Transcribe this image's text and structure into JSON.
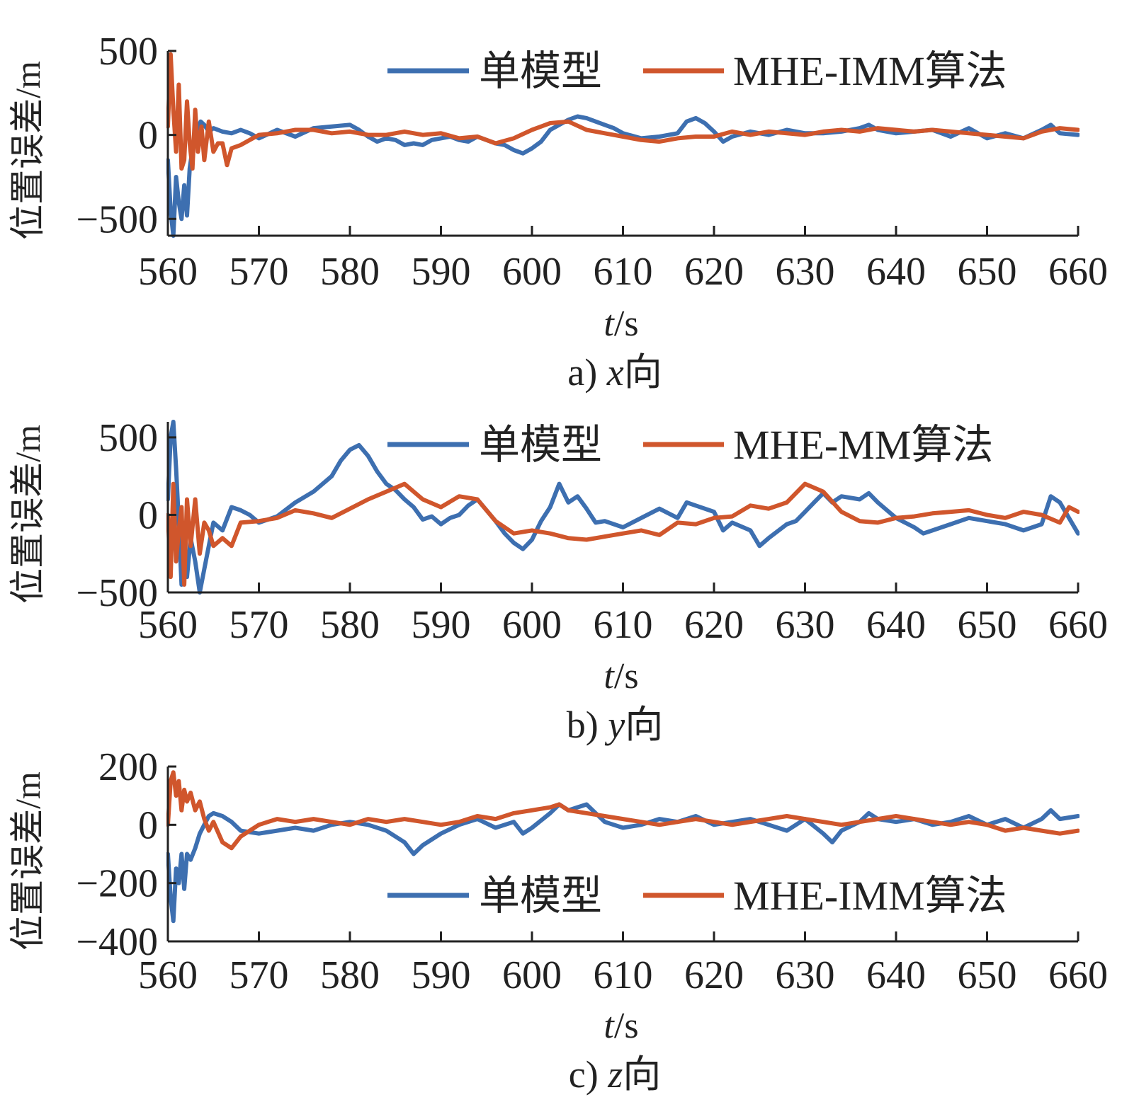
{
  "colors": {
    "series_single": "#3d6fb0",
    "series_imm": "#d0562c",
    "axis": "#222222"
  },
  "chart_data": [
    {
      "type": "line",
      "caption": "a) x向",
      "caption_prefix": "a) ",
      "caption_var": "x",
      "caption_suffix": "向",
      "xlabel_var": "t",
      "xlabel_unit": "/s",
      "ylabel": "位置误差/m",
      "xlim": [
        560,
        660
      ],
      "ylim": [
        -600,
        500
      ],
      "xticks": [
        "560",
        "570",
        "580",
        "590",
        "600",
        "610",
        "620",
        "630",
        "640",
        "650",
        "660"
      ],
      "yticks": [
        {
          "value": 500,
          "label": "500"
        },
        {
          "value": 0,
          "label": "0"
        },
        {
          "value": -500,
          "label": "−500"
        }
      ],
      "legend_position": "top",
      "grid": false,
      "series": [
        {
          "name": "单模型",
          "color": "#3d6fb0",
          "x": [
            560,
            560.3,
            560.6,
            560.9,
            561.2,
            561.5,
            561.8,
            562.1,
            562.4,
            562.8,
            563.2,
            563.6,
            564,
            564.5,
            565,
            566,
            567,
            568,
            569,
            570,
            572,
            574,
            576,
            578,
            580,
            581,
            582,
            583,
            584,
            585,
            586,
            587,
            588,
            589,
            590,
            591,
            592,
            593,
            594,
            595,
            596,
            597,
            598,
            599,
            600,
            601,
            602,
            603,
            604,
            605,
            606,
            607,
            608,
            609,
            610,
            612,
            614,
            616,
            617,
            618,
            619,
            620,
            621,
            622,
            624,
            626,
            628,
            630,
            632,
            634,
            636,
            637,
            638,
            640,
            642,
            644,
            646,
            648,
            650,
            652,
            654,
            656,
            657,
            658,
            660
          ],
          "y": [
            -150,
            -450,
            -600,
            -250,
            -400,
            -500,
            -300,
            -480,
            -200,
            -50,
            30,
            80,
            60,
            20,
            40,
            20,
            10,
            30,
            10,
            -20,
            30,
            -10,
            40,
            50,
            60,
            30,
            -10,
            -40,
            -20,
            -30,
            -60,
            -50,
            -60,
            -30,
            -20,
            -10,
            -30,
            -40,
            -10,
            -30,
            -50,
            -60,
            -90,
            -110,
            -80,
            -40,
            30,
            60,
            90,
            110,
            100,
            80,
            60,
            40,
            10,
            -20,
            -10,
            10,
            80,
            100,
            70,
            20,
            -40,
            -10,
            20,
            0,
            30,
            10,
            10,
            20,
            40,
            60,
            30,
            10,
            20,
            30,
            -10,
            40,
            -20,
            10,
            -20,
            30,
            60,
            10,
            0
          ]
        },
        {
          "name": "MHE-IMM算法",
          "color": "#d0562c",
          "x": [
            560,
            560.3,
            560.6,
            560.9,
            561.2,
            561.5,
            561.8,
            562.1,
            562.4,
            562.7,
            563,
            563.3,
            563.7,
            564,
            564.5,
            565,
            565.5,
            566,
            566.5,
            567,
            568,
            569,
            570,
            572,
            574,
            576,
            578,
            580,
            582,
            584,
            586,
            588,
            590,
            592,
            594,
            596,
            598,
            600,
            602,
            604,
            606,
            608,
            610,
            612,
            614,
            616,
            618,
            620,
            622,
            624,
            626,
            628,
            630,
            632,
            634,
            636,
            638,
            640,
            642,
            644,
            646,
            648,
            650,
            652,
            654,
            656,
            658,
            660
          ],
          "y": [
            50,
            480,
            150,
            -100,
            300,
            -200,
            -150,
            200,
            -50,
            -200,
            150,
            -100,
            50,
            -150,
            80,
            -100,
            -50,
            -50,
            -180,
            -80,
            -60,
            -30,
            0,
            10,
            30,
            30,
            10,
            20,
            0,
            0,
            20,
            0,
            10,
            -20,
            -10,
            -50,
            -20,
            30,
            70,
            80,
            30,
            10,
            -10,
            -30,
            -40,
            -20,
            -10,
            -10,
            20,
            0,
            20,
            10,
            0,
            20,
            30,
            20,
            40,
            30,
            20,
            30,
            20,
            10,
            0,
            -10,
            -20,
            20,
            40,
            30
          ]
        }
      ]
    },
    {
      "type": "line",
      "caption": "b) y向",
      "caption_prefix": "b) ",
      "caption_var": "y",
      "caption_suffix": "向",
      "xlabel_var": "t",
      "xlabel_unit": "/s",
      "ylabel": "位置误差/m",
      "xlim": [
        560,
        660
      ],
      "ylim": [
        -500,
        600
      ],
      "xticks": [
        "560",
        "570",
        "580",
        "590",
        "600",
        "610",
        "620",
        "630",
        "640",
        "650",
        "660"
      ],
      "yticks": [
        {
          "value": 500,
          "label": "500"
        },
        {
          "value": 0,
          "label": "0"
        },
        {
          "value": -500,
          "label": "−500"
        }
      ],
      "legend_position": "top",
      "grid": false,
      "series": [
        {
          "name": "单模型",
          "color": "#3d6fb0",
          "x": [
            560,
            560.3,
            560.6,
            560.9,
            561.2,
            561.5,
            561.8,
            562.1,
            562.5,
            563,
            563.5,
            564,
            564.5,
            565,
            566,
            567,
            568,
            569,
            570,
            572,
            574,
            576,
            578,
            579,
            580,
            581,
            582,
            583,
            584,
            585,
            586,
            587,
            588,
            589,
            590,
            591,
            592,
            593,
            594,
            596,
            597,
            598,
            599,
            600,
            601,
            602,
            603,
            604,
            605,
            606,
            607,
            608,
            610,
            612,
            614,
            616,
            617,
            618,
            620,
            621,
            622,
            624,
            625,
            626,
            628,
            629,
            630,
            631,
            632,
            633,
            634,
            636,
            637,
            638,
            640,
            642,
            643,
            644,
            646,
            648,
            650,
            652,
            654,
            656,
            657,
            658,
            660
          ],
          "y": [
            100,
            500,
            600,
            300,
            -50,
            -450,
            -200,
            -400,
            -150,
            -300,
            -500,
            -350,
            -200,
            -50,
            -100,
            50,
            30,
            0,
            -50,
            -10,
            80,
            150,
            250,
            350,
            420,
            450,
            380,
            280,
            200,
            160,
            100,
            50,
            -30,
            -10,
            -60,
            -20,
            0,
            60,
            100,
            -40,
            -120,
            -180,
            -220,
            -160,
            -40,
            50,
            200,
            80,
            120,
            40,
            -50,
            -40,
            -80,
            -20,
            40,
            -20,
            80,
            60,
            20,
            -100,
            -50,
            -100,
            -200,
            -150,
            -60,
            -40,
            20,
            80,
            140,
            80,
            120,
            100,
            140,
            80,
            -20,
            -80,
            -120,
            -100,
            -60,
            -20,
            -40,
            -60,
            -100,
            -60,
            120,
            80,
            -120
          ]
        },
        {
          "name": "MHE-MM算法",
          "color": "#d0562c",
          "x": [
            560,
            560.3,
            560.6,
            560.9,
            561.2,
            561.5,
            561.8,
            562.1,
            562.5,
            563,
            563.5,
            564,
            564.5,
            565,
            566,
            567,
            568,
            570,
            572,
            574,
            576,
            578,
            580,
            582,
            584,
            586,
            588,
            590,
            592,
            594,
            596,
            598,
            600,
            602,
            604,
            606,
            608,
            610,
            612,
            614,
            616,
            618,
            620,
            622,
            624,
            626,
            628,
            630,
            632,
            634,
            636,
            638,
            640,
            642,
            644,
            646,
            648,
            650,
            652,
            654,
            656,
            658,
            659,
            660
          ],
          "y": [
            0,
            -400,
            200,
            -300,
            -100,
            50,
            -450,
            100,
            -200,
            100,
            -250,
            -50,
            -100,
            -200,
            -150,
            -200,
            -50,
            -40,
            -20,
            30,
            10,
            -20,
            40,
            100,
            150,
            200,
            100,
            50,
            120,
            100,
            -40,
            -120,
            -100,
            -120,
            -150,
            -160,
            -140,
            -120,
            -100,
            -130,
            -50,
            -60,
            -20,
            -10,
            60,
            40,
            80,
            200,
            150,
            20,
            -40,
            -50,
            -20,
            -10,
            10,
            20,
            30,
            0,
            -20,
            20,
            0,
            -50,
            50,
            20
          ]
        }
      ]
    },
    {
      "type": "line",
      "caption": "c) z向",
      "caption_prefix": "c) ",
      "caption_var": "z",
      "caption_suffix": "向",
      "xlabel_var": "t",
      "xlabel_unit": "/s",
      "ylabel": "位置误差/m",
      "xlim": [
        560,
        660
      ],
      "ylim": [
        -400,
        200
      ],
      "xticks": [
        "560",
        "570",
        "580",
        "590",
        "600",
        "610",
        "620",
        "630",
        "640",
        "650",
        "660"
      ],
      "yticks": [
        {
          "value": 200,
          "label": "200"
        },
        {
          "value": 0,
          "label": "0"
        },
        {
          "value": -200,
          "label": "−200"
        },
        {
          "value": -400,
          "label": "−400"
        }
      ],
      "legend_position": "bottom",
      "grid": false,
      "series": [
        {
          "name": "单模型",
          "color": "#3d6fb0",
          "x": [
            560,
            560.3,
            560.6,
            560.9,
            561.2,
            561.5,
            561.8,
            562.1,
            562.5,
            563,
            563.5,
            564,
            564.5,
            565,
            566,
            567,
            568,
            570,
            572,
            574,
            576,
            578,
            580,
            582,
            584,
            586,
            587,
            588,
            590,
            592,
            594,
            596,
            598,
            599,
            600,
            602,
            603,
            604,
            605,
            606,
            607,
            608,
            610,
            612,
            614,
            616,
            618,
            620,
            622,
            624,
            626,
            628,
            630,
            632,
            633,
            634,
            636,
            637,
            638,
            640,
            642,
            644,
            646,
            648,
            650,
            652,
            654,
            656,
            657,
            658,
            660
          ],
          "y": [
            -100,
            -250,
            -330,
            -150,
            -200,
            -100,
            -220,
            -100,
            -120,
            -80,
            -30,
            0,
            30,
            40,
            30,
            10,
            -20,
            -30,
            -20,
            -10,
            -20,
            0,
            10,
            0,
            -20,
            -60,
            -100,
            -70,
            -30,
            0,
            20,
            -10,
            10,
            -30,
            -10,
            40,
            70,
            50,
            60,
            70,
            40,
            10,
            -10,
            0,
            20,
            10,
            30,
            0,
            10,
            20,
            0,
            -20,
            20,
            -30,
            -60,
            -20,
            10,
            40,
            20,
            10,
            20,
            0,
            10,
            30,
            0,
            20,
            -10,
            20,
            50,
            20,
            30
          ]
        },
        {
          "name": "MHE-IMM算法",
          "color": "#d0562c",
          "x": [
            560,
            560.3,
            560.6,
            560.9,
            561.2,
            561.5,
            561.8,
            562.1,
            562.5,
            563,
            563.5,
            564,
            564.5,
            565,
            566,
            567,
            568,
            570,
            572,
            574,
            576,
            578,
            580,
            582,
            584,
            586,
            588,
            590,
            592,
            594,
            596,
            598,
            600,
            602,
            603,
            604,
            606,
            608,
            610,
            612,
            614,
            616,
            618,
            620,
            622,
            624,
            626,
            628,
            630,
            632,
            634,
            636,
            638,
            640,
            642,
            644,
            646,
            648,
            650,
            652,
            654,
            656,
            658,
            660
          ],
          "y": [
            0,
            150,
            180,
            100,
            150,
            50,
            120,
            80,
            110,
            50,
            80,
            20,
            -20,
            10,
            -60,
            -80,
            -40,
            0,
            20,
            10,
            20,
            10,
            0,
            20,
            10,
            20,
            10,
            0,
            10,
            30,
            20,
            40,
            50,
            60,
            70,
            50,
            40,
            30,
            20,
            10,
            0,
            10,
            20,
            10,
            0,
            10,
            20,
            30,
            20,
            10,
            0,
            10,
            20,
            30,
            20,
            10,
            0,
            10,
            0,
            -20,
            -10,
            -20,
            -30,
            -20
          ]
        }
      ]
    }
  ]
}
